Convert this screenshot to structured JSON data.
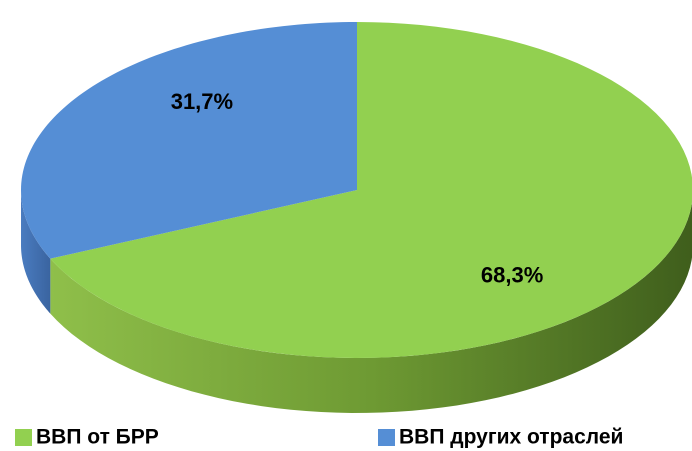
{
  "chart_data": {
    "type": "pie",
    "categories": [
      "ВВП от БРР",
      "ВВП других отраслей"
    ],
    "values": [
      68.3,
      31.7
    ],
    "value_labels": [
      "68,3%",
      "31,7%"
    ],
    "colors": [
      "#92d050",
      "#558ed5"
    ]
  }
}
